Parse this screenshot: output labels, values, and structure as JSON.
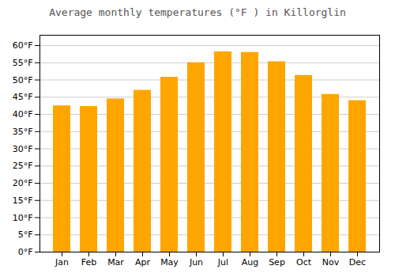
{
  "chart_data": {
    "type": "bar",
    "title": "Average monthly temperatures (°F ) in Killorglin",
    "categories": [
      "Jan",
      "Feb",
      "Mar",
      "Apr",
      "May",
      "Jun",
      "Jul",
      "Aug",
      "Sep",
      "Oct",
      "Nov",
      "Dec"
    ],
    "values": [
      42.5,
      42.3,
      44.5,
      47.0,
      50.8,
      55.0,
      58.2,
      58.0,
      55.3,
      51.3,
      45.8,
      44.0
    ],
    "color": "#FFA500",
    "ylim": [
      0,
      63
    ],
    "yticks": [
      {
        "value": 0,
        "label": "0°F"
      },
      {
        "value": 5,
        "label": "5°F"
      },
      {
        "value": 10,
        "label": "10°F"
      },
      {
        "value": 15,
        "label": "15°F"
      },
      {
        "value": 20,
        "label": "20°F"
      },
      {
        "value": 25,
        "label": "25°F"
      },
      {
        "value": 30,
        "label": "30°F"
      },
      {
        "value": 35,
        "label": "35°F"
      },
      {
        "value": 40,
        "label": "40°F"
      },
      {
        "value": 45,
        "label": "45°F"
      },
      {
        "value": 50,
        "label": "50°F"
      },
      {
        "value": 55,
        "label": "55°F"
      },
      {
        "value": 60,
        "label": "60°F"
      }
    ],
    "grid": true
  }
}
